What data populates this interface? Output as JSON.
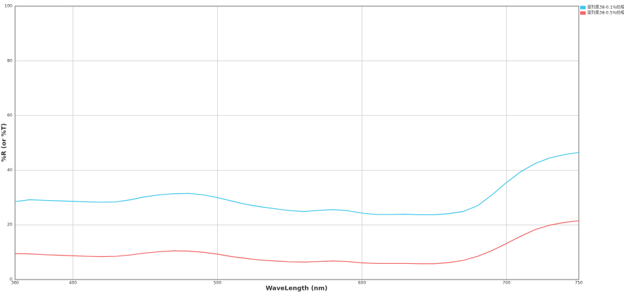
{
  "chart_data": {
    "type": "line",
    "x_label": "WaveLength (nm)",
    "y_label": "%R (or %T)",
    "x": [
      360,
      370,
      380,
      390,
      400,
      410,
      420,
      430,
      440,
      450,
      460,
      470,
      480,
      490,
      500,
      510,
      520,
      530,
      540,
      550,
      560,
      570,
      580,
      590,
      600,
      610,
      620,
      630,
      640,
      650,
      660,
      670,
      680,
      690,
      700,
      710,
      720,
      730,
      740,
      750
    ],
    "series": [
      {
        "name": "溶剂黑38-0.1%纺缎",
        "color": "#3ec6ec",
        "values": [
          28.5,
          29.2,
          29.0,
          28.8,
          28.6,
          28.4,
          28.3,
          28.4,
          29.2,
          30.3,
          31.0,
          31.4,
          31.5,
          31.0,
          30.0,
          28.7,
          27.5,
          26.6,
          25.9,
          25.2,
          24.9,
          25.3,
          25.6,
          25.2,
          24.3,
          23.8,
          23.8,
          23.9,
          23.7,
          23.7,
          24.1,
          24.9,
          27.0,
          31.0,
          35.5,
          39.5,
          42.5,
          44.5,
          45.7,
          46.5
        ]
      },
      {
        "name": "溶剂黑38-0.5%纺缎",
        "color": "#f06464",
        "values": [
          9.5,
          9.4,
          9.1,
          8.9,
          8.7,
          8.5,
          8.4,
          8.5,
          9.0,
          9.7,
          10.2,
          10.5,
          10.4,
          10.0,
          9.3,
          8.4,
          7.7,
          7.1,
          6.8,
          6.5,
          6.4,
          6.6,
          6.8,
          6.6,
          6.1,
          5.9,
          5.9,
          5.9,
          5.8,
          5.8,
          6.2,
          7.0,
          8.5,
          10.6,
          13.2,
          15.9,
          18.3,
          19.9,
          20.9,
          21.5
        ]
      }
    ],
    "xlim": [
      360,
      750
    ],
    "xticks": [
      360,
      400,
      500,
      600,
      700,
      750
    ],
    "ylim": [
      0,
      100
    ],
    "yticks": [
      0,
      20,
      40,
      60,
      80,
      100
    ],
    "grid": true,
    "legend": "top-right"
  }
}
